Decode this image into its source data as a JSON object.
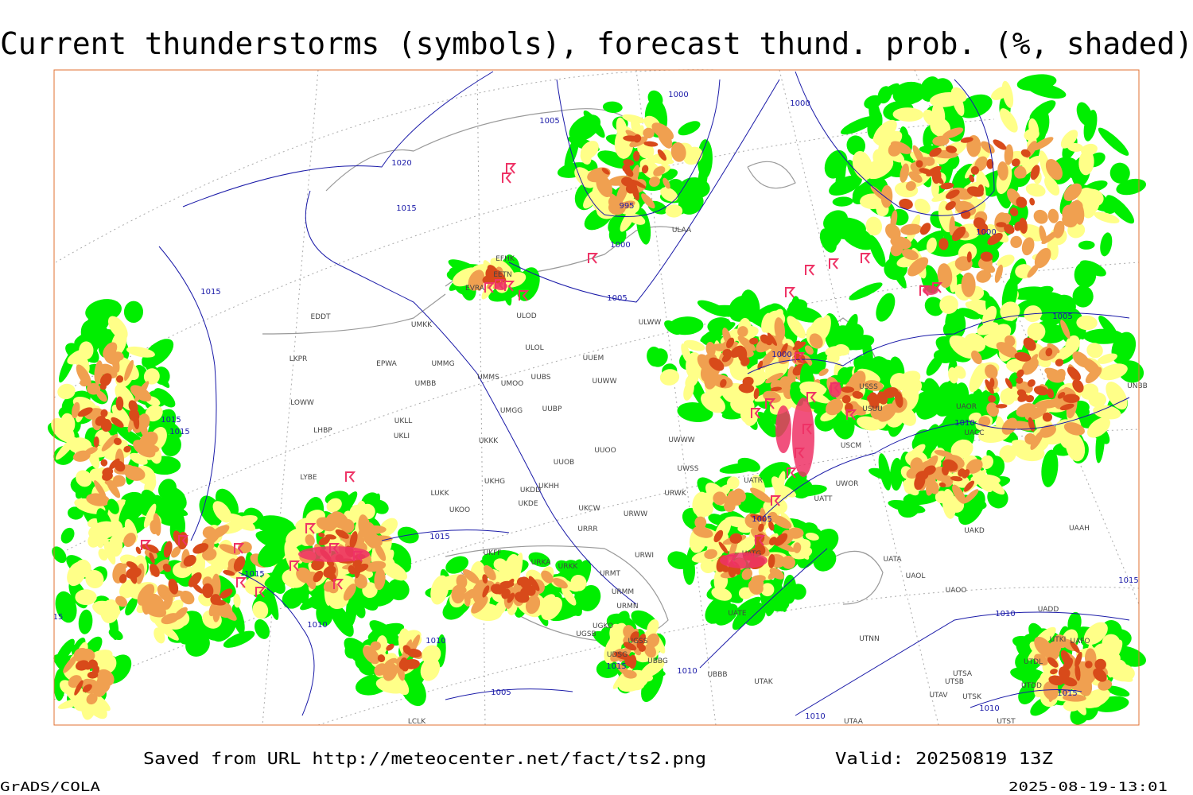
{
  "header": {
    "title": "Current thunderstorms (symbols), forecast thund. prob. (%, shaded)"
  },
  "isobar_labels": [
    1000,
    1005,
    1020,
    1015,
    995,
    1000,
    1005,
    1015,
    1000,
    1000,
    1005,
    1000,
    1010,
    1015,
    1015,
    1005,
    1015,
    1015,
    1010,
    1010,
    1010,
    1010,
    1005,
    1010,
    1010,
    1015,
    1015,
    1015,
    15
  ],
  "stations": [
    "EFHK",
    "EETN",
    "EVRA",
    "ULOD",
    "UMKK",
    "EPWA",
    "EDDT",
    "LKPR",
    "LOWW",
    "LHBP",
    "LYBE",
    "UMMG",
    "UMMS",
    "UMOO",
    "UUBS",
    "UMBB",
    "ULOL",
    "UUEM",
    "ULWW",
    "UUWW",
    "UKLL",
    "UKLI",
    "UMGG",
    "UUBP",
    "UKKK",
    "UUOB",
    "UUOO",
    "UWSS",
    "UWWW",
    "LUKK",
    "UKHH",
    "UKHG",
    "UKDD",
    "UKDE",
    "UKOO",
    "UKCW",
    "URWW",
    "URWK",
    "URRR",
    "UKFF",
    "URKA",
    "URKK",
    "URMT",
    "URWI",
    "URMM",
    "URMN",
    "UGKO",
    "UGSB",
    "UGSS",
    "UBBG",
    "UBBB",
    "UDSG",
    "UTAK",
    "UTAA",
    "ULAA",
    "UATR",
    "UATT",
    "UWOR",
    "UATG",
    "UATE",
    "UATA",
    "UAOL",
    "UAOO",
    "UTNN",
    "UAKD",
    "UAAH",
    "UACC",
    "UAOR",
    "USCM",
    "USUU",
    "USSS",
    "UNBB",
    "UTSB",
    "UTSA",
    "UTSK",
    "UTAV",
    "UTST",
    "UTDD",
    "UTDL",
    "UTKI",
    "UAFO",
    "UADD",
    "LCLK"
  ],
  "footer": {
    "source": "Saved from URL http://meteocenter.net/fact/ts2.png",
    "valid": "Valid: 20250819 13Z",
    "software": "GrADS/COLA",
    "timestamp": "2025-08-19-13:01"
  }
}
